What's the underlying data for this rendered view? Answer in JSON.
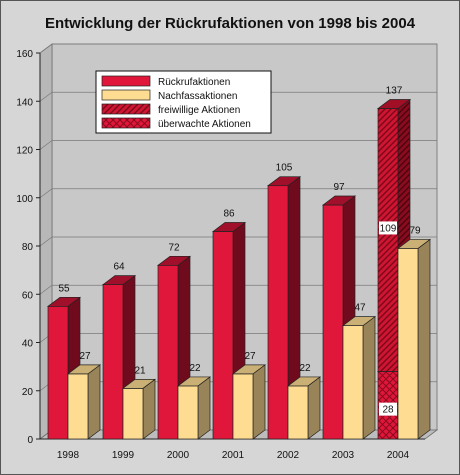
{
  "chart_data": {
    "type": "bar",
    "title": "Entwicklung der Rückrufaktionen von 1998 bis 2004",
    "categories": [
      "1998",
      "1999",
      "2000",
      "2001",
      "2002",
      "2003",
      "2004"
    ],
    "ylim": [
      0,
      160
    ],
    "yticks": [
      "0",
      "20",
      "40",
      "60",
      "80",
      "100",
      "120",
      "140",
      "160"
    ],
    "legend_position": "top-left",
    "series": [
      {
        "name": "Rückrufaktionen",
        "values": [
          55,
          64,
          72,
          86,
          105,
          97,
          137
        ],
        "color": "#e0163a",
        "stack_2004": [
          {
            "name": "überwachte Aktionen",
            "value": 28,
            "pattern": "crosshatch"
          },
          {
            "name": "freiwillige Aktionen",
            "value": 109,
            "pattern": "diagonal"
          }
        ]
      },
      {
        "name": "Nachfassaktionen",
        "values": [
          27,
          21,
          22,
          27,
          22,
          47,
          79
        ],
        "color": "#fedc92"
      }
    ],
    "legend": [
      "Rückrufaktionen",
      "Nachfassaktionen",
      "freiwillige Aktionen",
      "überwachte Aktionen"
    ],
    "labels": {
      "red": [
        "55",
        "64",
        "72",
        "86",
        "105",
        "97",
        "137"
      ],
      "yellow": [
        "27",
        "21",
        "22",
        "27",
        "22",
        "47",
        "79"
      ],
      "seg_2004": [
        "109",
        "28"
      ]
    }
  }
}
